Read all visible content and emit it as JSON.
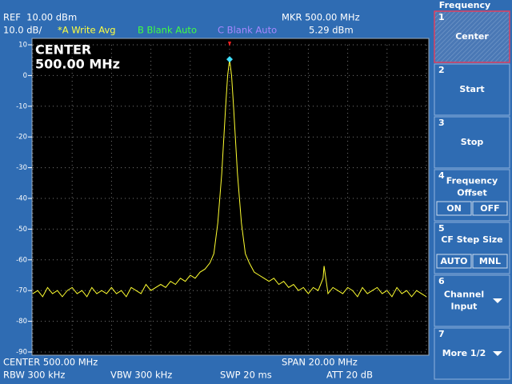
{
  "header": {
    "ref": "REF  10.00 dBm",
    "scale": "10.0 dB/",
    "trace_a": "*A Write Avg",
    "trace_b": "B Blank Auto",
    "trace_c": "C Blank Auto",
    "marker_freq": "MKR 500.00 MHz",
    "marker_level": "5.29 dBm"
  },
  "chart_data": {
    "type": "line",
    "annotation": [
      "CENTER",
      "500.00 MHz"
    ],
    "color": "#ffff30",
    "x": [
      490,
      490.25,
      490.5,
      490.75,
      491,
      491.25,
      491.5,
      491.75,
      492,
      492.25,
      492.5,
      492.75,
      493,
      493.25,
      493.5,
      493.75,
      494,
      494.25,
      494.5,
      494.75,
      495,
      495.25,
      495.5,
      495.75,
      496,
      496.25,
      496.5,
      496.75,
      497,
      497.25,
      497.5,
      497.75,
      498,
      498.25,
      498.5,
      498.75,
      499,
      499.2,
      499.4,
      499.6,
      499.8,
      499.9,
      500,
      500.1,
      500.2,
      500.4,
      500.6,
      500.8,
      501,
      501.25,
      501.5,
      501.75,
      502,
      502.25,
      502.5,
      502.75,
      503,
      503.25,
      503.5,
      503.75,
      504,
      504.25,
      504.5,
      504.75,
      504.8,
      505,
      505.25,
      505.5,
      505.75,
      506,
      506.25,
      506.5,
      506.75,
      507,
      507.25,
      507.5,
      507.75,
      508,
      508.25,
      508.5,
      508.75,
      509,
      509.25,
      509.5,
      509.75,
      510
    ],
    "values": [
      -71,
      -70,
      -72,
      -69,
      -71,
      -70,
      -72,
      -70,
      -69,
      -71,
      -70,
      -72,
      -69,
      -71,
      -70,
      -71,
      -69,
      -71,
      -70,
      -72,
      -69,
      -70,
      -71,
      -68,
      -70,
      -69,
      -68,
      -69,
      -67,
      -68,
      -66,
      -67,
      -65,
      -66,
      -64,
      -63,
      -61,
      -58,
      -48,
      -32,
      -10,
      0,
      5.29,
      0,
      -10,
      -32,
      -48,
      -58,
      -61,
      -64,
      -65,
      -66,
      -67,
      -66,
      -68,
      -67,
      -69,
      -68,
      -70,
      -69,
      -71,
      -69,
      -70,
      -66,
      -62,
      -71,
      -69,
      -70,
      -71,
      -69,
      -70,
      -72,
      -69,
      -71,
      -70,
      -69,
      -71,
      -70,
      -72,
      -69,
      -71,
      -70,
      -72,
      -70,
      -71,
      -72
    ],
    "marker": {
      "x": 500,
      "y": 5.29,
      "color": "#40e0ff"
    },
    "xlim": [
      490,
      510
    ],
    "ylim": [
      -90,
      10
    ],
    "yticks": [
      10,
      0,
      -10,
      -20,
      -30,
      -40,
      -50,
      -60,
      -70,
      -80,
      -90
    ],
    "grid": true
  },
  "footer": {
    "center": "CENTER 500.00 MHz",
    "span": "SPAN 20.00 MHz",
    "rbw": "RBW 300 kHz",
    "vbw": "VBW 300 kHz",
    "swp": "SWP 20 ms",
    "att": "ATT 20 dB"
  },
  "softkeys": {
    "title": "Frequency",
    "keys": [
      {
        "number": "1",
        "label": [
          "Center"
        ]
      },
      {
        "number": "2",
        "label": [
          "Start"
        ]
      },
      {
        "number": "3",
        "label": [
          "Stop"
        ]
      },
      {
        "number": "4",
        "label": [
          "Frequency",
          "Offset"
        ],
        "options": [
          "ON",
          "OFF"
        ]
      },
      {
        "number": "5",
        "label": [
          "CF Step Size"
        ],
        "options": [
          "AUTO",
          "MNL"
        ]
      },
      {
        "number": "6",
        "label": [
          "Channel",
          "Input"
        ]
      },
      {
        "number": "7",
        "label": [
          "More 1/2"
        ]
      }
    ]
  }
}
